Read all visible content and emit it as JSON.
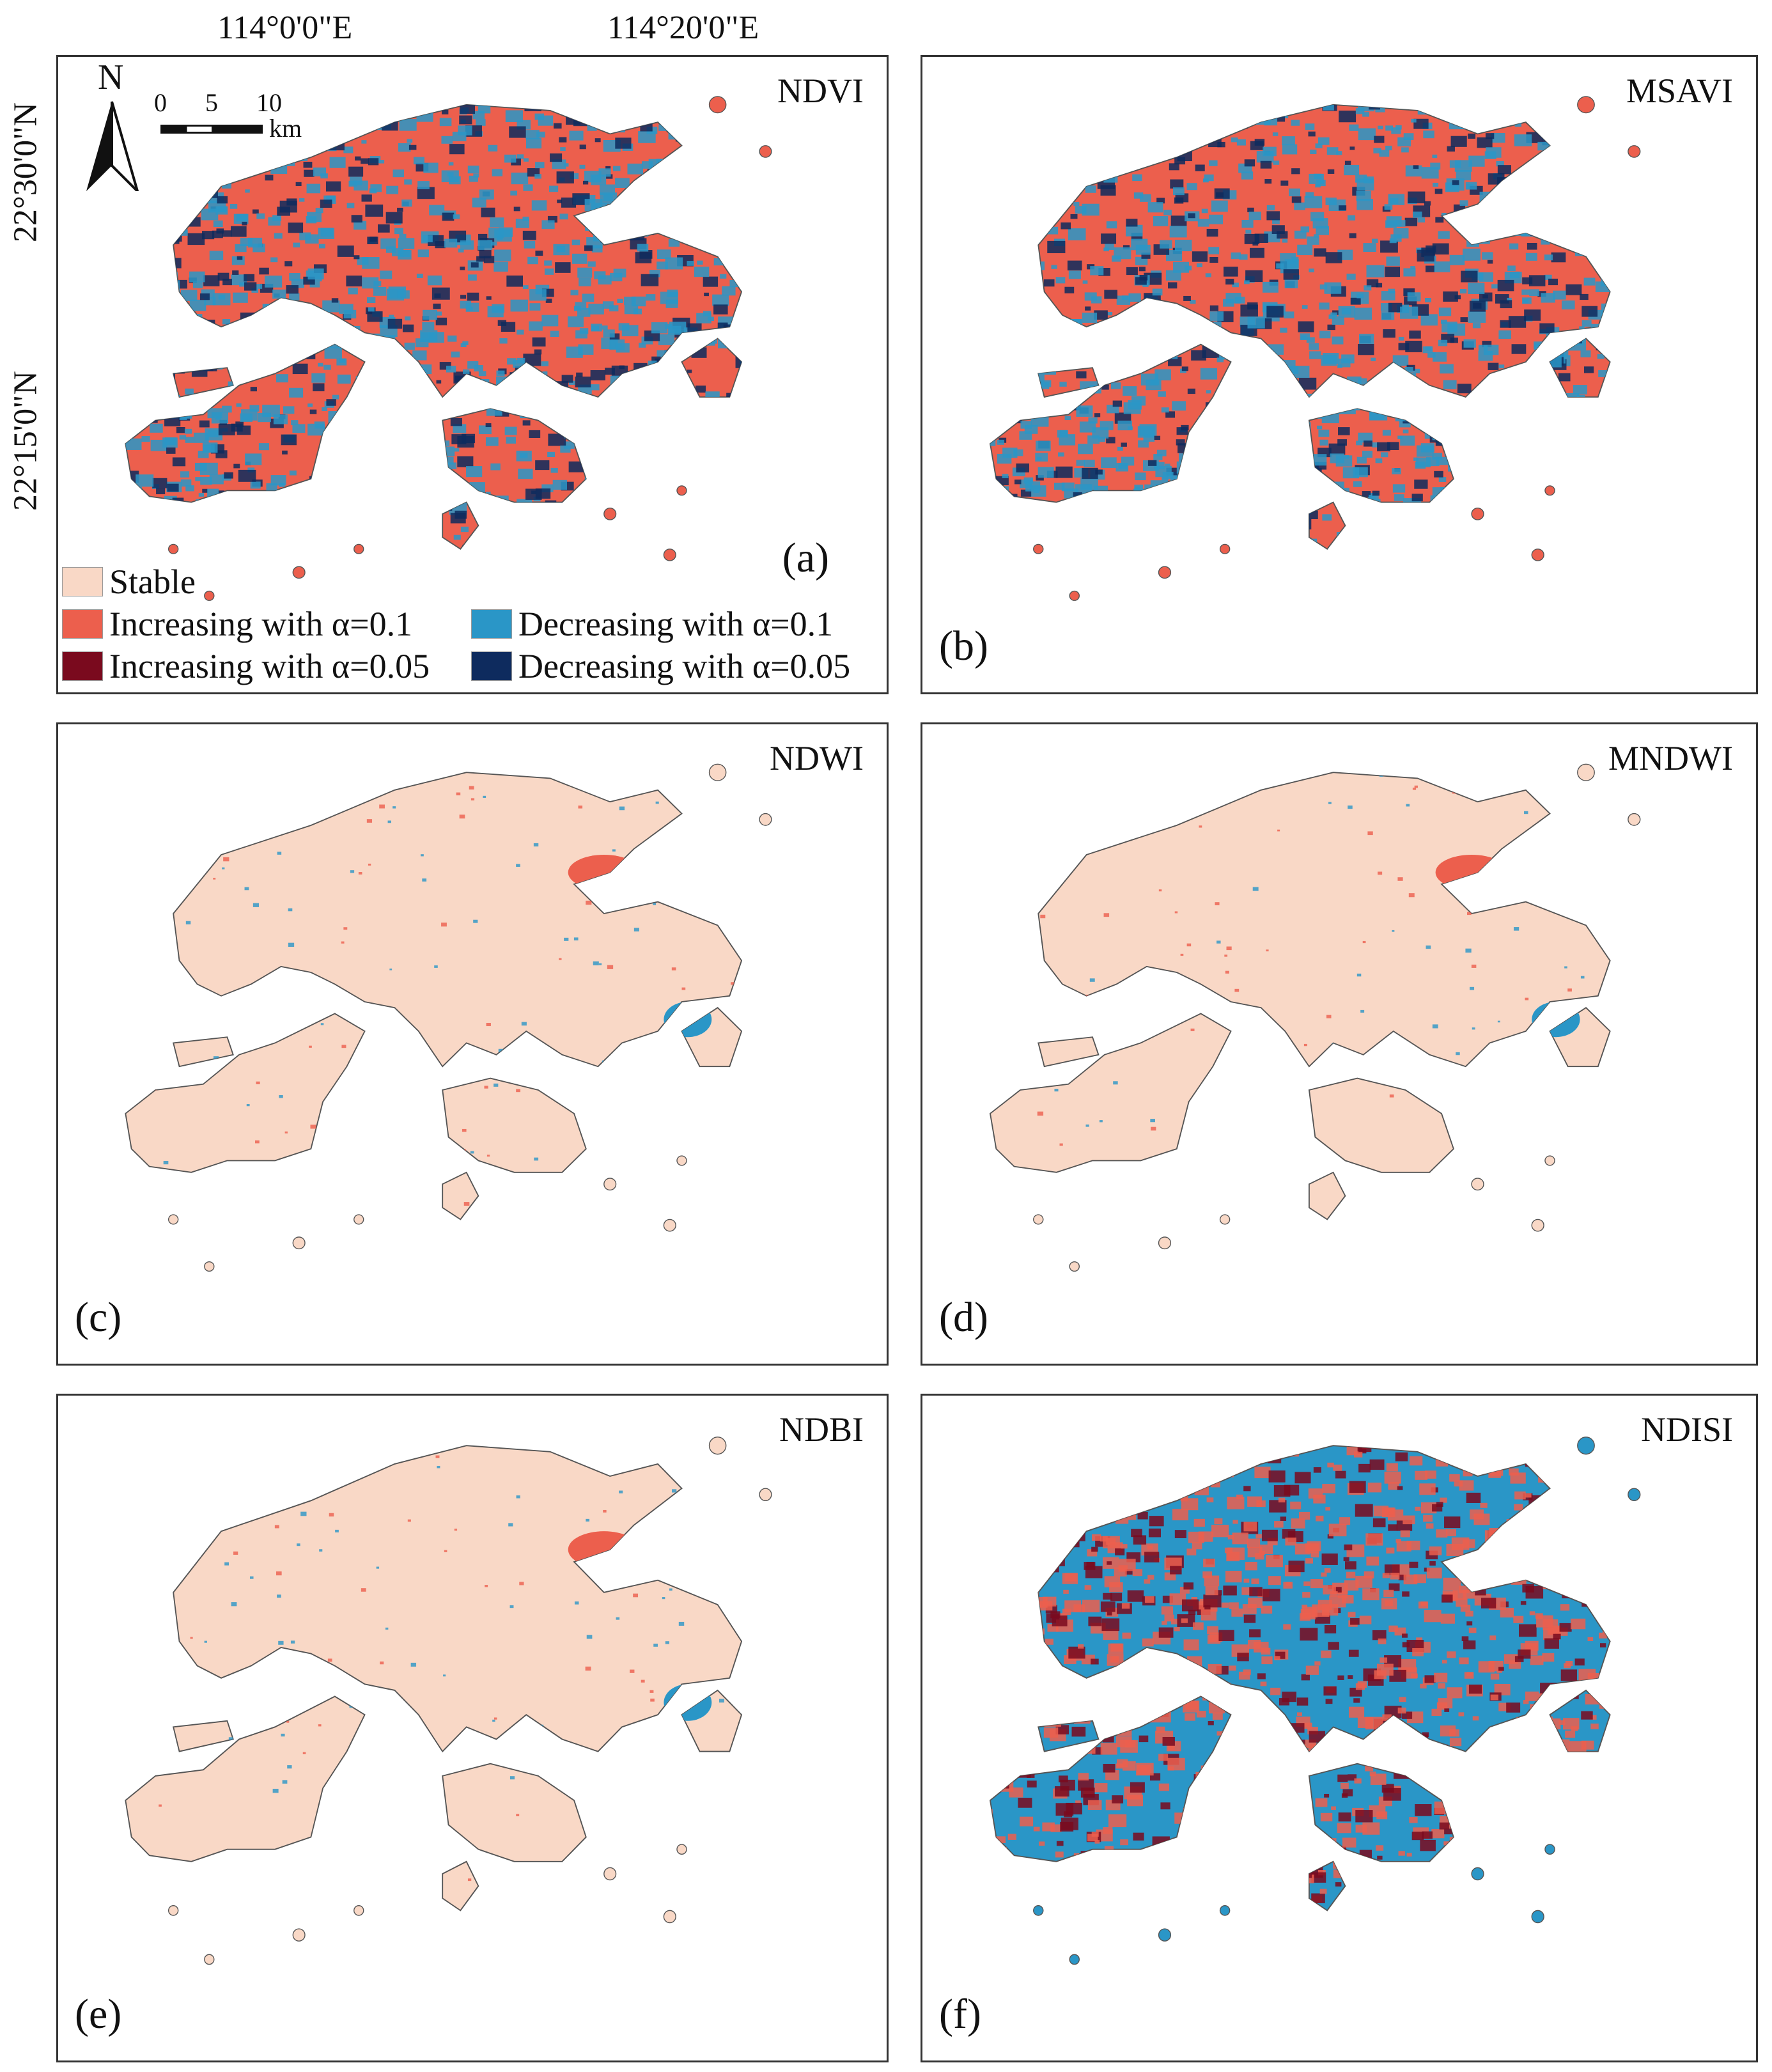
{
  "axes": {
    "lon_labels": [
      "114°0'0\"E",
      "114°20'0\"E"
    ],
    "lat_labels": [
      "22°30'0\"N",
      "22°15'0\"N"
    ]
  },
  "north_arrow": {
    "label": "N",
    "icon": "north-arrow-icon"
  },
  "scale_bar": {
    "ticks": [
      "0",
      "5",
      "10"
    ],
    "unit": "km"
  },
  "legend": [
    {
      "label": "Stable",
      "color": "#f9d8c6"
    },
    {
      "label": "Increasing with α=0.1",
      "color": "#ec5f4d"
    },
    {
      "label": "Decreasing with α=0.1",
      "color": "#2a96c7"
    },
    {
      "label": "Increasing with α=0.05",
      "color": "#7a0a1e"
    },
    {
      "label": "Decreasing with α=0.05",
      "color": "#0e2b5e"
    }
  ],
  "panels": [
    {
      "title": "NDVI",
      "label": "(a)",
      "mode": "mixed-red"
    },
    {
      "title": "MSAVI",
      "label": "(b)",
      "mode": "mixed-red"
    },
    {
      "title": "NDWI",
      "label": "(c)",
      "mode": "stable"
    },
    {
      "title": "MNDWI",
      "label": "(d)",
      "mode": "stable"
    },
    {
      "title": "NDBI",
      "label": "(e)",
      "mode": "stable"
    },
    {
      "title": "NDISI",
      "label": "(f)",
      "mode": "mixed-blue"
    }
  ]
}
